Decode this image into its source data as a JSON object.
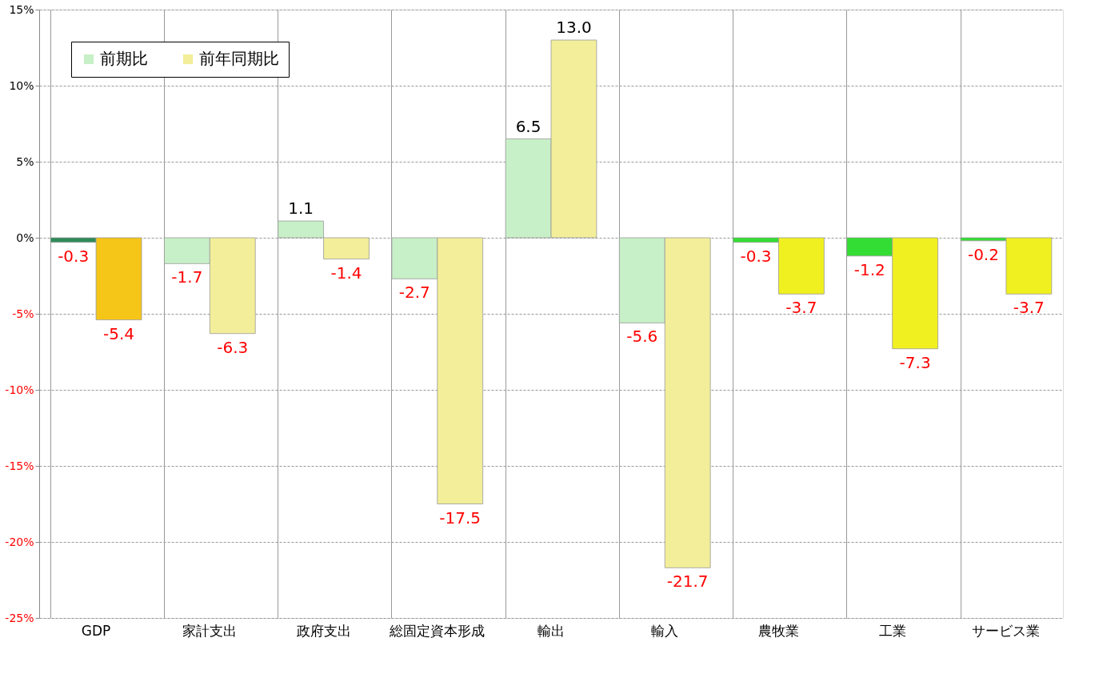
{
  "chart_data": {
    "type": "bar",
    "categories": [
      "GDP",
      "家計支出",
      "政府支出",
      "総固定資本形成",
      "輸出",
      "輸入",
      "農牧業",
      "工業",
      "サービス業"
    ],
    "series": [
      {
        "name": "前期比",
        "color": "#c8f0c8",
        "colors": [
          "#2e8b57",
          "#c8f0c8",
          "#c8f0c8",
          "#c8f0c8",
          "#c8f0c8",
          "#c8f0c8",
          "#33dd33",
          "#33dd33",
          "#33dd33"
        ],
        "values": [
          -0.3,
          -1.7,
          1.1,
          -2.7,
          6.5,
          -5.6,
          -0.3,
          -1.2,
          -0.2
        ],
        "value_labels": [
          "-0.3",
          "-1.7",
          "1.1",
          "-2.7",
          "6.5",
          "-5.6",
          "-0.3",
          "-1.2",
          "-0.2"
        ]
      },
      {
        "name": "前年同期比",
        "color": "#f2ee9a",
        "colors": [
          "#f5c518",
          "#f2ee9a",
          "#f2ee9a",
          "#f2ee9a",
          "#f2ee9a",
          "#f2ee9a",
          "#f0f020",
          "#f0f020",
          "#f0f020"
        ],
        "values": [
          -5.4,
          -6.3,
          -1.4,
          -17.5,
          13.0,
          -21.7,
          -3.7,
          -7.3,
          -3.7
        ],
        "value_labels": [
          "-5.4",
          "-6.3",
          "-1.4",
          "-17.5",
          "13.0",
          "-21.7",
          "-3.7",
          "-7.3",
          "-3.7"
        ]
      }
    ],
    "ylim": [
      -25,
      15
    ],
    "yticks": [
      {
        "value": -25,
        "label": "-25%"
      },
      {
        "value": -20,
        "label": "-20%"
      },
      {
        "value": -15,
        "label": "-15%"
      },
      {
        "value": -10,
        "label": "-10%"
      },
      {
        "value": -5,
        "label": "-5%"
      },
      {
        "value": 0,
        "label": "0%"
      },
      {
        "value": 5,
        "label": "5%"
      },
      {
        "value": 10,
        "label": "10%"
      },
      {
        "value": 15,
        "label": "15%"
      }
    ],
    "grid": true,
    "legend": "top left"
  }
}
